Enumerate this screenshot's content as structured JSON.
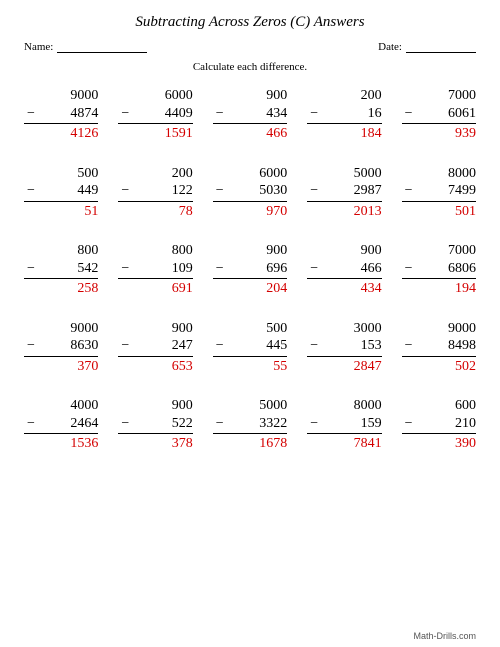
{
  "title": "Subtracting Across Zeros (C) Answers",
  "name_label": "Name:",
  "date_label": "Date:",
  "instruction": "Calculate each difference.",
  "footer": "Math-Drills.com",
  "colors": {
    "answer": "#d40000",
    "text": "#000000",
    "background": "#ffffff"
  },
  "problems": [
    {
      "min": "9000",
      "sub": "4874",
      "ans": "4126"
    },
    {
      "min": "6000",
      "sub": "4409",
      "ans": "1591"
    },
    {
      "min": "900",
      "sub": "434",
      "ans": "466"
    },
    {
      "min": "200",
      "sub": "16",
      "ans": "184"
    },
    {
      "min": "7000",
      "sub": "6061",
      "ans": "939"
    },
    {
      "min": "500",
      "sub": "449",
      "ans": "51"
    },
    {
      "min": "200",
      "sub": "122",
      "ans": "78"
    },
    {
      "min": "6000",
      "sub": "5030",
      "ans": "970"
    },
    {
      "min": "5000",
      "sub": "2987",
      "ans": "2013"
    },
    {
      "min": "8000",
      "sub": "7499",
      "ans": "501"
    },
    {
      "min": "800",
      "sub": "542",
      "ans": "258"
    },
    {
      "min": "800",
      "sub": "109",
      "ans": "691"
    },
    {
      "min": "900",
      "sub": "696",
      "ans": "204"
    },
    {
      "min": "900",
      "sub": "466",
      "ans": "434"
    },
    {
      "min": "7000",
      "sub": "6806",
      "ans": "194"
    },
    {
      "min": "9000",
      "sub": "8630",
      "ans": "370"
    },
    {
      "min": "900",
      "sub": "247",
      "ans": "653"
    },
    {
      "min": "500",
      "sub": "445",
      "ans": "55"
    },
    {
      "min": "3000",
      "sub": "153",
      "ans": "2847"
    },
    {
      "min": "9000",
      "sub": "8498",
      "ans": "502"
    },
    {
      "min": "4000",
      "sub": "2464",
      "ans": "1536"
    },
    {
      "min": "900",
      "sub": "522",
      "ans": "378"
    },
    {
      "min": "5000",
      "sub": "3322",
      "ans": "1678"
    },
    {
      "min": "8000",
      "sub": "159",
      "ans": "7841"
    },
    {
      "min": "600",
      "sub": "210",
      "ans": "390"
    }
  ]
}
